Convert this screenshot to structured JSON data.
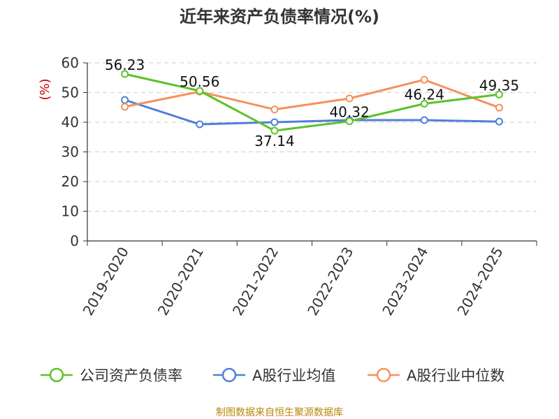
{
  "chart_data": {
    "type": "line",
    "title": "近年来资产负债率情况(%)",
    "ylabel": "(%)",
    "xlabel": "",
    "ylim": [
      0,
      60
    ],
    "yticks": [
      0,
      10,
      20,
      30,
      40,
      50,
      60
    ],
    "grid": true,
    "legend_position": "bottom",
    "categories": [
      "2019-2020",
      "2020-2021",
      "2021-2022",
      "2022-2023",
      "2023-2024",
      "2024-2025"
    ],
    "series": [
      {
        "name": "公司资产负债率",
        "color": "#5cc22a",
        "values": [
          56.23,
          50.56,
          37.14,
          40.32,
          46.24,
          49.35
        ],
        "labels": [
          "56.23",
          "50.56",
          "37.14",
          "40.32",
          "46.24",
          "49.35"
        ]
      },
      {
        "name": "A股行业均值",
        "color": "#4f7fd9",
        "values": [
          47.5,
          39.3,
          40.0,
          40.7,
          40.7,
          40.2
        ]
      },
      {
        "name": "A股行业中位数",
        "color": "#f4915c",
        "values": [
          45.2,
          50.3,
          44.3,
          48.0,
          54.3,
          44.9
        ]
      }
    ],
    "source": "制图数据来自恒生聚源数据库"
  }
}
